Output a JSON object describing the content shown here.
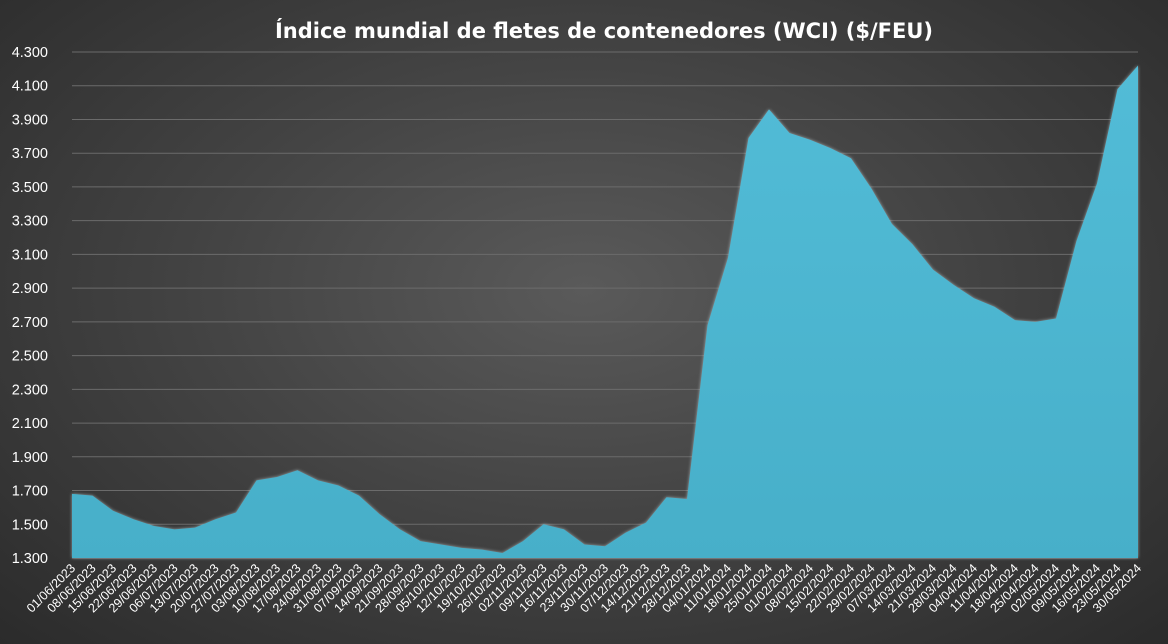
{
  "chart_data": {
    "type": "area",
    "title": "Índice mundial de fletes de contenedores (WCI) ($/FEU)",
    "xlabel": "",
    "ylabel": "",
    "ylim": [
      1300,
      4300
    ],
    "yticks": [
      1300,
      1500,
      1700,
      1900,
      2100,
      2300,
      2500,
      2700,
      2900,
      3100,
      3300,
      3500,
      3700,
      3900,
      4100,
      4300
    ],
    "ytick_labels": [
      "1.300",
      "1.500",
      "1.700",
      "1.900",
      "2.100",
      "2.300",
      "2.500",
      "2.700",
      "2.900",
      "3.100",
      "3.300",
      "3.500",
      "3.700",
      "3.900",
      "4.100",
      "4.300"
    ],
    "x_tick_labels": [
      "01/06/2023",
      "08/06/2023",
      "15/06/2023",
      "22/06/2023",
      "29/06/2023",
      "06/07/2023",
      "13/07/2023",
      "20/07/2023",
      "27/07/2023",
      "03/08/2023",
      "10/08/2023",
      "17/08/2023",
      "24/08/2023",
      "31/08/2023",
      "07/09/2023",
      "14/09/2023",
      "21/09/2023",
      "28/09/2023",
      "05/10/2023",
      "12/10/2023",
      "19/10/2023",
      "26/10/2023",
      "02/11/2023",
      "09/11/2023",
      "16/11/2023",
      "23/11/2023",
      "30/11/2023",
      "07/12/2023",
      "14/12/2023",
      "21/12/2023",
      "28/12/2023",
      "04/01/2024",
      "11/01/2024",
      "18/01/2024",
      "25/01/2024",
      "01/02/2024",
      "08/02/2024",
      "15/02/2024",
      "22/02/2024",
      "29/02/2024",
      "07/03/2024",
      "14/03/2024",
      "21/03/2024",
      "28/03/2024",
      "04/04/2024",
      "11/04/2024",
      "18/04/2024",
      "25/04/2024",
      "02/05/2024",
      "09/05/2024",
      "16/05/2024",
      "23/05/2024",
      "30/05/2024"
    ],
    "grid": true,
    "legend": "none",
    "color": "#4fb8d3",
    "series": [
      {
        "x": [
          "01/06/2023",
          "08/06/2023",
          "15/06/2023",
          "22/06/2023",
          "29/06/2023",
          "06/07/2023",
          "13/07/2023",
          "20/07/2023",
          "27/07/2023",
          "03/08/2023",
          "10/08/2023",
          "17/08/2023",
          "24/08/2023",
          "31/08/2023",
          "07/09/2023",
          "14/09/2023",
          "21/09/2023",
          "28/09/2023",
          "05/10/2023",
          "12/10/2023",
          "19/10/2023",
          "26/10/2023",
          "02/11/2023",
          "09/11/2023",
          "16/11/2023",
          "23/11/2023",
          "30/11/2023",
          "07/12/2023",
          "14/12/2023",
          "21/12/2023",
          "28/12/2023",
          "04/01/2024",
          "11/01/2024",
          "18/01/2024",
          "25/01/2024",
          "01/02/2024",
          "08/02/2024",
          "15/02/2024",
          "22/02/2024",
          "29/02/2024",
          "07/03/2024",
          "14/03/2024",
          "21/03/2024",
          "28/03/2024",
          "04/04/2024",
          "11/04/2024",
          "18/04/2024",
          "25/04/2024",
          "02/05/2024",
          "09/05/2024",
          "16/05/2024",
          "23/05/2024",
          "30/05/2024"
        ],
        "values": [
          1680,
          1670,
          1580,
          1530,
          1490,
          1470,
          1480,
          1530,
          1570,
          1760,
          1780,
          1820,
          1760,
          1730,
          1670,
          1560,
          1470,
          1400,
          1380,
          1360,
          1350,
          1330,
          1400,
          1500,
          1470,
          1380,
          1370,
          1450,
          1510,
          1660,
          1650,
          2680,
          3080,
          3790,
          3960,
          3820,
          3780,
          3730,
          3670,
          3490,
          3280,
          3160,
          3010,
          2920,
          2840,
          2790,
          2710,
          2700,
          2720,
          3180,
          3520,
          4080,
          4220
        ]
      }
    ]
  }
}
